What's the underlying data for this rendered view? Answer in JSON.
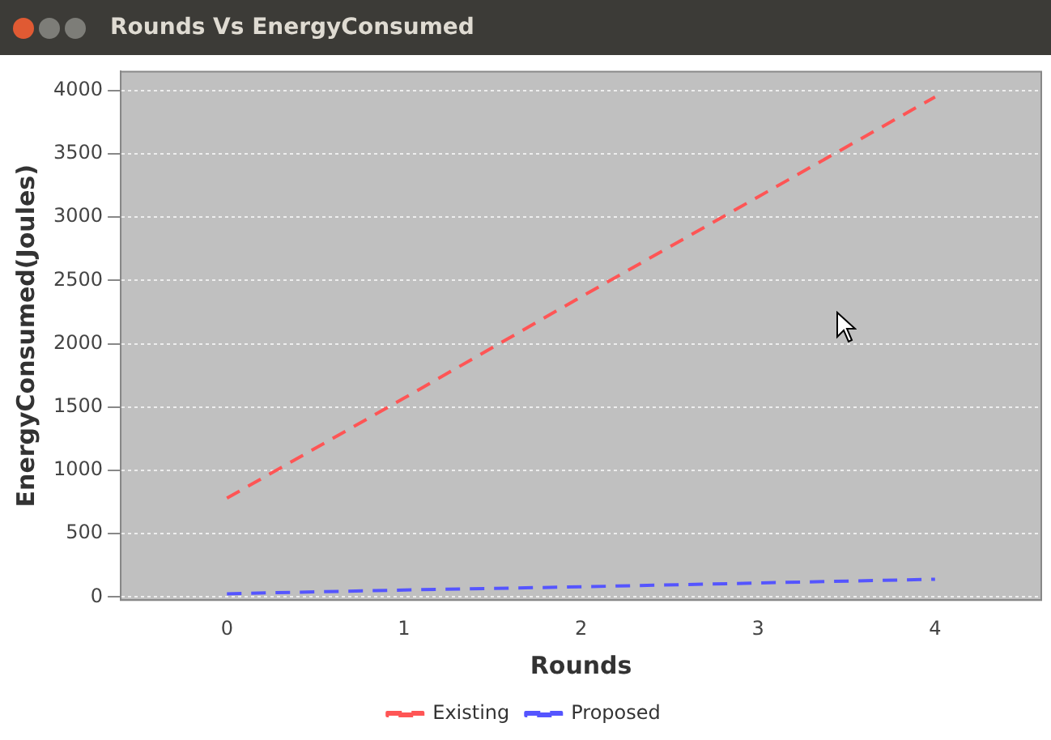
{
  "chart_data": {
    "type": "line",
    "title": "Rounds Vs EnergyConsumed",
    "xlabel": "Rounds",
    "ylabel": "EnergyConsumed(Joules)",
    "x": [
      0,
      1,
      2,
      3,
      4
    ],
    "series": [
      {
        "name": "Existing",
        "color": "#ff5555",
        "values": [
          780,
          1570,
          2370,
          3160,
          3950
        ]
      },
      {
        "name": "Proposed",
        "color": "#5555ff",
        "values": [
          25,
          55,
          80,
          110,
          140
        ]
      }
    ],
    "xlim": [
      -0.6,
      4.6
    ],
    "xticks": [
      0,
      1,
      2,
      3,
      4
    ],
    "ylim": [
      -25,
      4150
    ],
    "yticks": [
      0,
      500,
      1000,
      1500,
      2000,
      2500,
      3000,
      3500,
      4000
    ],
    "grid": "y",
    "legend": "bottom",
    "marker": "none",
    "line_style": "dashed"
  }
}
